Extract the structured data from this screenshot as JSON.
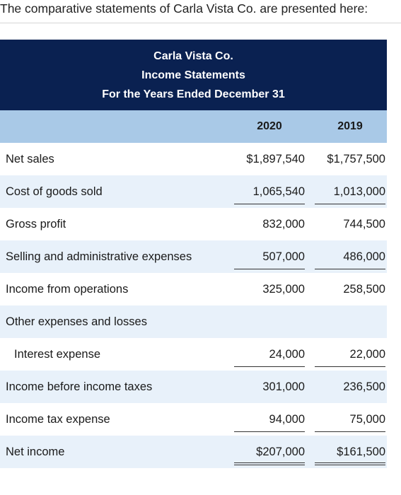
{
  "intro": "The comparative statements of Carla Vista Co. are presented here:",
  "header": {
    "company": "Carla Vista Co.",
    "statement": "Income Statements",
    "period": "For the Years Ended December 31"
  },
  "columns": [
    "2020",
    "2019"
  ],
  "rows": [
    {
      "label": "Net sales",
      "v2020": "$1,897,540",
      "v2019": "$1,757,500"
    },
    {
      "label": "Cost of goods sold",
      "v2020": "1,065,540",
      "v2019": "1,013,000"
    },
    {
      "label": "Gross profit",
      "v2020": "832,000",
      "v2019": "744,500"
    },
    {
      "label": "Selling and administrative expenses",
      "v2020": "507,000",
      "v2019": "486,000"
    },
    {
      "label": "Income from operations",
      "v2020": "325,000",
      "v2019": "258,500"
    },
    {
      "label": "Other expenses and losses",
      "v2020": "",
      "v2019": ""
    },
    {
      "label": "Interest expense",
      "v2020": "24,000",
      "v2019": "22,000"
    },
    {
      "label": "Income before income taxes",
      "v2020": "301,000",
      "v2019": "236,500"
    },
    {
      "label": "Income tax expense",
      "v2020": "94,000",
      "v2019": "75,000"
    },
    {
      "label": "Net income",
      "v2020": "$207,000",
      "v2019": "$161,500"
    }
  ],
  "colors": {
    "header_bg": "#0a2151",
    "colhead_bg": "#a9c9e7",
    "row_shade": "#e8f1fa"
  }
}
